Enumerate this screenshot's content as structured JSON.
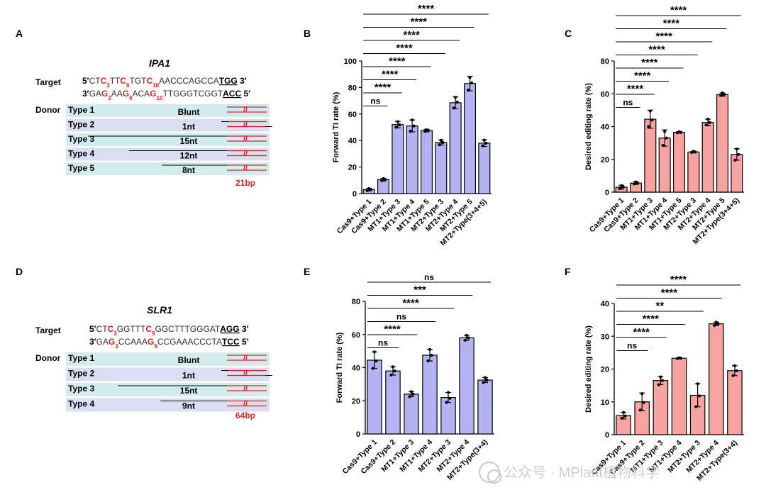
{
  "panels": {
    "A": {
      "letter": "A",
      "gene": "IPA1",
      "target_label": "Target",
      "donor_label": "Donor",
      "seq_top": [
        {
          "t": "5′",
          "s": "end"
        },
        {
          "t": "CT",
          "s": "n"
        },
        {
          "t": "C",
          "s": "r"
        },
        {
          "t": "3",
          "s": "rs"
        },
        {
          "t": "TT",
          "s": "n"
        },
        {
          "t": "C",
          "s": "r"
        },
        {
          "t": "6",
          "s": "rs"
        },
        {
          "t": "TGT",
          "s": "n"
        },
        {
          "t": "C",
          "s": "r"
        },
        {
          "t": "10",
          "s": "rs"
        },
        {
          "t": "AACCCAGCCA",
          "s": "n"
        },
        {
          "t": "TGG",
          "s": "pam"
        },
        {
          "t": " 3′",
          "s": "end"
        }
      ],
      "seq_bottom": [
        {
          "t": "3′",
          "s": "end"
        },
        {
          "t": "GA",
          "s": "n"
        },
        {
          "t": "G",
          "s": "r"
        },
        {
          "t": "3",
          "s": "rs"
        },
        {
          "t": "AA",
          "s": "n"
        },
        {
          "t": "G",
          "s": "r"
        },
        {
          "t": "6",
          "s": "rs"
        },
        {
          "t": "ACA",
          "s": "n"
        },
        {
          "t": "G",
          "s": "r"
        },
        {
          "t": "10",
          "s": "rs"
        },
        {
          "t": "TTGGGTCGGT",
          "s": "n"
        },
        {
          "t": "ACC",
          "s": "pam"
        },
        {
          "t": " 5′",
          "s": "end"
        }
      ],
      "donors": [
        {
          "type": "Type 1",
          "overhang": "Blunt"
        },
        {
          "type": "Type 2",
          "overhang": "1nt"
        },
        {
          "type": "Type 3",
          "overhang": "15nt"
        },
        {
          "type": "Type 4",
          "overhang": "12nt"
        },
        {
          "type": "Type 5",
          "overhang": "8nt"
        }
      ],
      "insert_length": "21bp"
    },
    "D": {
      "letter": "D",
      "gene": "SLR1",
      "target_label": "Target",
      "donor_label": "Donor",
      "seq_top": [
        {
          "t": "5′",
          "s": "end"
        },
        {
          "t": "CT",
          "s": "n"
        },
        {
          "t": "C",
          "s": "r"
        },
        {
          "t": "3",
          "s": "rs"
        },
        {
          "t": "GGTTT",
          "s": "n"
        },
        {
          "t": "C",
          "s": "r"
        },
        {
          "t": "9",
          "s": "rs"
        },
        {
          "t": "GGCTTTGGGAT",
          "s": "n"
        },
        {
          "t": "AGG",
          "s": "pam"
        },
        {
          "t": " 3′",
          "s": "end"
        }
      ],
      "seq_bottom": [
        {
          "t": "3′",
          "s": "end"
        },
        {
          "t": "GA",
          "s": "n"
        },
        {
          "t": "G",
          "s": "r"
        },
        {
          "t": "3",
          "s": "rs"
        },
        {
          "t": "CCAAA",
          "s": "n"
        },
        {
          "t": "G",
          "s": "r"
        },
        {
          "t": "9",
          "s": "rs"
        },
        {
          "t": "CCGAAACCCTA",
          "s": "n"
        },
        {
          "t": "TCC",
          "s": "pam"
        },
        {
          "t": " 5′",
          "s": "end"
        }
      ],
      "donors": [
        {
          "type": "Type 1",
          "overhang": "Blunt"
        },
        {
          "type": "Type 2",
          "overhang": "1nt"
        },
        {
          "type": "Type 3",
          "overhang": "15nt"
        },
        {
          "type": "Type 4",
          "overhang": "9nt"
        }
      ],
      "insert_length": "64bp"
    }
  },
  "chart_data": [
    {
      "panel": "B",
      "type": "bar",
      "ylabel": "Forward TI rate (%)",
      "ylim": [
        0,
        100
      ],
      "yticks": [
        0,
        20,
        40,
        60,
        80,
        100
      ],
      "bar_color": "#b3b3f2",
      "categories": [
        "Cas9+Type 1",
        "Cas9+Type 2",
        "MT1+Type 3",
        "MT1+Type 4",
        "MT1+Type 5",
        "MT2+Type 3",
        "MT2+Type 4",
        "MT2+Type 5",
        "MT2+Type(3+4+5)"
      ],
      "values": [
        3,
        10.5,
        52,
        51,
        47.5,
        38.5,
        68.5,
        83,
        38
      ],
      "errors": [
        1,
        1,
        2.5,
        4.5,
        1,
        2,
        4.5,
        5.5,
        2.5
      ],
      "points": [
        [
          2.2,
          3.2,
          3.8
        ],
        [
          9.8,
          10.6,
          11.3
        ],
        [
          50,
          51.8,
          54.2
        ],
        [
          47,
          51,
          55.5
        ],
        [
          46.9,
          47.5,
          48.1
        ],
        [
          36.8,
          38.5,
          40.2
        ],
        [
          64.5,
          69,
          72.5
        ],
        [
          78,
          83.5,
          87.5
        ],
        [
          36,
          38,
          40.3
        ]
      ],
      "significance": [
        {
          "from": 0,
          "to": 1,
          "label": "ns"
        },
        {
          "from": 0,
          "to": 2,
          "label": "****"
        },
        {
          "from": 0,
          "to": 3,
          "label": "****"
        },
        {
          "from": 0,
          "to": 4,
          "label": "****"
        },
        {
          "from": 0,
          "to": 5,
          "label": "****"
        },
        {
          "from": 0,
          "to": 6,
          "label": "****"
        },
        {
          "from": 0,
          "to": 7,
          "label": "****"
        },
        {
          "from": 0,
          "to": 8,
          "label": "****"
        }
      ]
    },
    {
      "panel": "C",
      "type": "bar",
      "ylabel": "Desired editing rate (%)",
      "ylim": [
        0,
        80
      ],
      "yticks": [
        0,
        20,
        40,
        60,
        80
      ],
      "bar_color": "#f7a3a1",
      "categories": [
        "Cas9+Type 1",
        "Cas9+Type 2",
        "MT1+Type 3",
        "MT1+Type 4",
        "MT1+Type 5",
        "MT2+Type 3",
        "MT2+Type 4",
        "MT2+Type 5",
        "MT2+Type(3+4+5)"
      ],
      "values": [
        3,
        5.5,
        44.5,
        33,
        36.5,
        24.5,
        42.5,
        59.5,
        23
      ],
      "errors": [
        1.2,
        0.8,
        5.5,
        5,
        0.5,
        0.5,
        2,
        1,
        3.5
      ],
      "points": [
        [
          2.2,
          3.2,
          4
        ],
        [
          5,
          5.6,
          6.2
        ],
        [
          40,
          44,
          49.5
        ],
        [
          28.5,
          33,
          37
        ],
        [
          36.2,
          36.5,
          36.8
        ],
        [
          24.2,
          24.5,
          24.9
        ],
        [
          41,
          42.5,
          44.5
        ],
        [
          59,
          59.6,
          60.5
        ],
        [
          19.5,
          23,
          26.3
        ]
      ],
      "significance": [
        {
          "from": 0,
          "to": 1,
          "label": "ns"
        },
        {
          "from": 0,
          "to": 2,
          "label": "****"
        },
        {
          "from": 0,
          "to": 3,
          "label": "****"
        },
        {
          "from": 0,
          "to": 4,
          "label": "****"
        },
        {
          "from": 0,
          "to": 5,
          "label": "****"
        },
        {
          "from": 0,
          "to": 6,
          "label": "****"
        },
        {
          "from": 0,
          "to": 7,
          "label": "****"
        },
        {
          "from": 0,
          "to": 8,
          "label": "****"
        }
      ]
    },
    {
      "panel": "E",
      "type": "bar",
      "ylabel": "Forward TI rate (%)",
      "ylim": [
        0,
        80
      ],
      "yticks": [
        0,
        20,
        40,
        60,
        80
      ],
      "bar_color": "#b3b3f2",
      "categories": [
        "Cas9+Type 1",
        "Cas9+Type 2",
        "MT1+Type 3",
        "MT1+Type 4",
        "MT2+Type 3",
        "MT2+Type 4",
        "MT2+Type(3+4)"
      ],
      "values": [
        44.5,
        38,
        24,
        47.5,
        22,
        58,
        32.5
      ],
      "errors": [
        5,
        2.5,
        1.5,
        3.5,
        3,
        1.5,
        1.5
      ],
      "points": [
        [
          39.5,
          44,
          49.5
        ],
        [
          35.5,
          38,
          40.5
        ],
        [
          22.5,
          24,
          25.5
        ],
        [
          44,
          47.5,
          51
        ],
        [
          19,
          21.5,
          25
        ],
        [
          56.5,
          58,
          59.5
        ],
        [
          31,
          32.5,
          34
        ]
      ],
      "significance": [
        {
          "from": 0,
          "to": 1,
          "label": "ns"
        },
        {
          "from": 0,
          "to": 2,
          "label": "****"
        },
        {
          "from": 0,
          "to": 3,
          "label": "ns"
        },
        {
          "from": 0,
          "to": 4,
          "label": "****"
        },
        {
          "from": 0,
          "to": 5,
          "label": "***"
        },
        {
          "from": 0,
          "to": 6,
          "label": "ns"
        }
      ]
    },
    {
      "panel": "F",
      "type": "bar",
      "ylabel": "Desired editing rate (%)",
      "ylim": [
        0,
        40
      ],
      "yticks": [
        0,
        10,
        20,
        30,
        40
      ],
      "bar_color": "#f7a3a1",
      "categories": [
        "Cas9+Type 1",
        "Cas9+Type 2",
        "MT1+Type 3",
        "MT1+Type 4",
        "MT2+Type 3",
        "MT2+Type 4",
        "MT2+Type(3+4)"
      ],
      "values": [
        5.8,
        10,
        16.5,
        23.3,
        12,
        33.8,
        19.5
      ],
      "errors": [
        1,
        2.7,
        1.2,
        0.2,
        3.5,
        0.5,
        1.5
      ],
      "points": [
        [
          5,
          5.7,
          6.8
        ],
        [
          7.5,
          9.8,
          12.5
        ],
        [
          15.2,
          16.5,
          17.6
        ],
        [
          23.2,
          23.3,
          23.4
        ],
        [
          8.5,
          11.8,
          15.5
        ],
        [
          33.3,
          33.8,
          34.3
        ],
        [
          18,
          19.5,
          21
        ]
      ],
      "significance": [
        {
          "from": 0,
          "to": 1,
          "label": "ns"
        },
        {
          "from": 0,
          "to": 2,
          "label": "****"
        },
        {
          "from": 0,
          "to": 3,
          "label": "****"
        },
        {
          "from": 0,
          "to": 4,
          "label": "**"
        },
        {
          "from": 0,
          "to": 5,
          "label": "****"
        },
        {
          "from": 0,
          "to": 6,
          "label": "****"
        }
      ]
    }
  ],
  "watermark": "公众号 · MPlant植物科学"
}
